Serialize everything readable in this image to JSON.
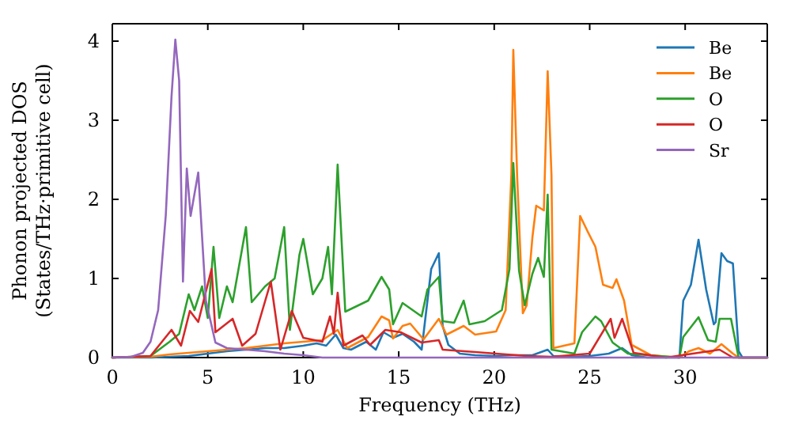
{
  "chart_data": {
    "type": "line",
    "xlabel": "Frequency (THz)",
    "ylabel": "Phonon projected DOS\n(States/THz·primitive cell)",
    "xlim": [
      0,
      34.3
    ],
    "ylim": [
      0,
      4.22
    ],
    "xticks": [
      0,
      5,
      10,
      15,
      20,
      25,
      30
    ],
    "yticks": [
      0,
      1,
      2,
      3,
      4
    ],
    "legend": "top right",
    "grid": false,
    "series": [
      {
        "name": "Be",
        "color": "#1f77b4",
        "x": [
          0,
          2,
          4,
          5,
          6,
          7,
          8,
          9,
          10,
          10.7,
          11.2,
          11.7,
          12.1,
          12.5,
          13.3,
          13.8,
          14.2,
          14.7,
          15.2,
          15.8,
          16.2,
          16.7,
          17.1,
          17.3,
          17.6,
          18.2,
          19,
          20,
          21,
          22,
          22.8,
          23.1,
          24,
          25,
          26,
          26.7,
          27.2,
          28,
          29.7,
          29.9,
          30.3,
          30.7,
          31.1,
          31.5,
          31.6,
          31.9,
          32.2,
          32.5,
          32.8,
          33,
          34.3
        ],
        "values": [
          0,
          0,
          0.02,
          0.05,
          0.08,
          0.1,
          0.12,
          0.12,
          0.15,
          0.18,
          0.15,
          0.29,
          0.12,
          0.1,
          0.2,
          0.1,
          0.32,
          0.25,
          0.3,
          0.2,
          0.1,
          1.12,
          1.32,
          0.4,
          0.16,
          0.05,
          0.03,
          0.02,
          0.03,
          0.03,
          0.1,
          0.02,
          0.01,
          0.02,
          0.05,
          0.12,
          0.03,
          0,
          0,
          0.72,
          0.92,
          1.49,
          0.86,
          0.42,
          0.45,
          1.32,
          1.22,
          1.19,
          0.08,
          0,
          0
        ]
      },
      {
        "name": "Be",
        "color": "#ff7f0e",
        "x": [
          0,
          2,
          3,
          4,
          5,
          6,
          7,
          8,
          9,
          10,
          11,
          11.8,
          12.3,
          13.4,
          14.1,
          14.5,
          14.7,
          15.2,
          15.6,
          16.3,
          17.1,
          17.5,
          18.4,
          19,
          20.1,
          20.6,
          20.9,
          21,
          21.2,
          21.5,
          21.7,
          22,
          22.2,
          22.6,
          22.8,
          23,
          23.1,
          24.2,
          24.5,
          24.9,
          25.3,
          25.7,
          26.2,
          26.4,
          26.8,
          27.2,
          28.2,
          29.7,
          30.2,
          30.7,
          31.3,
          31.9,
          32.5,
          32.8,
          34.3
        ],
        "values": [
          0,
          0.01,
          0.04,
          0.06,
          0.08,
          0.1,
          0.12,
          0.15,
          0.18,
          0.2,
          0.22,
          0.35,
          0.12,
          0.26,
          0.52,
          0.47,
          0.24,
          0.4,
          0.43,
          0.23,
          0.49,
          0.29,
          0.4,
          0.29,
          0.33,
          0.6,
          2.32,
          3.89,
          2.3,
          0.56,
          0.66,
          1.52,
          1.92,
          1.86,
          3.62,
          2.3,
          0.12,
          0.18,
          1.79,
          1.59,
          1.4,
          0.92,
          0.88,
          0.99,
          0.72,
          0.16,
          0.03,
          0,
          0.08,
          0.12,
          0.05,
          0.17,
          0.05,
          0,
          0
        ]
      },
      {
        "name": "O",
        "color": "#2ca02c",
        "x": [
          0,
          2,
          3,
          3.5,
          4,
          4.3,
          4.7,
          5,
          5.3,
          5.6,
          6,
          6.3,
          7,
          7.3,
          8,
          8.5,
          9,
          9.3,
          9.8,
          10,
          10.5,
          11,
          11.3,
          11.5,
          11.8,
          12.2,
          13.4,
          14.1,
          14.5,
          14.7,
          15.2,
          16.2,
          16.5,
          17.1,
          17.3,
          17.9,
          18.4,
          18.7,
          19.5,
          20.4,
          20.8,
          21,
          21.3,
          21.6,
          22,
          22.3,
          22.6,
          22.8,
          23,
          24.2,
          24.6,
          25.3,
          25.6,
          26.2,
          27,
          29.7,
          29.9,
          30.7,
          31.2,
          31.6,
          31.8,
          32.4,
          32.8,
          34.3
        ],
        "values": [
          0,
          0.02,
          0.2,
          0.3,
          0.8,
          0.6,
          0.9,
          0.5,
          1.4,
          0.5,
          0.9,
          0.7,
          1.65,
          0.7,
          0.9,
          1.0,
          1.65,
          0.35,
          1.3,
          1.5,
          0.8,
          1.0,
          1.4,
          0.8,
          2.44,
          0.58,
          0.72,
          1.02,
          0.86,
          0.42,
          0.69,
          0.52,
          0.86,
          1.02,
          0.46,
          0.44,
          0.72,
          0.42,
          0.46,
          0.6,
          1.12,
          2.46,
          1.1,
          0.66,
          1.06,
          1.26,
          1.02,
          2.06,
          0.1,
          0.05,
          0.32,
          0.52,
          0.46,
          0.19,
          0.05,
          0,
          0.26,
          0.51,
          0.22,
          0.2,
          0.49,
          0.49,
          0,
          0
        ]
      },
      {
        "name": "O",
        "color": "#d62728",
        "x": [
          0,
          2,
          3.1,
          3.6,
          4.06,
          4.5,
          5.2,
          5.4,
          6.3,
          6.8,
          7.5,
          8.3,
          8.8,
          9.4,
          10,
          11,
          11.4,
          11.6,
          11.8,
          12.1,
          13.1,
          13.5,
          14.3,
          15.1,
          16.2,
          17.1,
          17.3,
          19,
          21.7,
          23,
          25,
          26.1,
          26.3,
          26.7,
          27.3,
          29,
          31.8,
          32.5,
          34.3
        ],
        "values": [
          0,
          0.02,
          0.35,
          0.15,
          0.59,
          0.45,
          1.12,
          0.32,
          0.49,
          0.15,
          0.3,
          0.96,
          0.1,
          0.59,
          0.25,
          0.2,
          0.52,
          0.3,
          0.82,
          0.15,
          0.28,
          0.16,
          0.35,
          0.32,
          0.19,
          0.22,
          0.1,
          0.07,
          0.02,
          0.01,
          0.05,
          0.49,
          0.25,
          0.49,
          0.06,
          0,
          0.1,
          0,
          0
        ]
      },
      {
        "name": "Sr",
        "color": "#9467bd",
        "x": [
          0,
          1,
          1.6,
          2,
          2.4,
          2.8,
          3.1,
          3.3,
          3.5,
          3.7,
          3.9,
          4.1,
          4.5,
          4.9,
          5.4,
          6,
          7,
          8,
          9,
          10,
          11,
          34.3
        ],
        "values": [
          0,
          0.01,
          0.06,
          0.2,
          0.6,
          1.8,
          3.3,
          4.02,
          3.5,
          0.96,
          2.39,
          1.79,
          2.34,
          0.72,
          0.19,
          0.12,
          0.1,
          0.08,
          0.05,
          0.03,
          0,
          0
        ]
      }
    ]
  }
}
